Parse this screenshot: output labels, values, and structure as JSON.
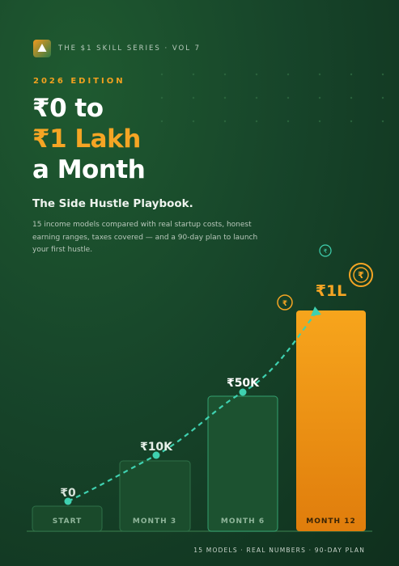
{
  "header": {
    "series": "THE $1 SKILL SERIES · VOL 7",
    "edition": "2026 EDITION"
  },
  "title": {
    "line1": "₹0 to",
    "line2": "₹1 Lakh",
    "line3": "a Month"
  },
  "subtitle": "The Side Hustle Playbook.",
  "description": "15 income models compared with real startup costs, honest earning ranges, taxes covered — and a 90-day plan to launch your first hustle.",
  "chart": {
    "categories": [
      "START",
      "MONTH 3",
      "MONTH 6",
      "MONTH 12"
    ],
    "value_labels": [
      "₹0",
      "₹10K",
      "₹50K",
      "₹1L"
    ]
  },
  "footer": "15 MODELS · REAL NUMBERS · 90-DAY PLAN"
}
